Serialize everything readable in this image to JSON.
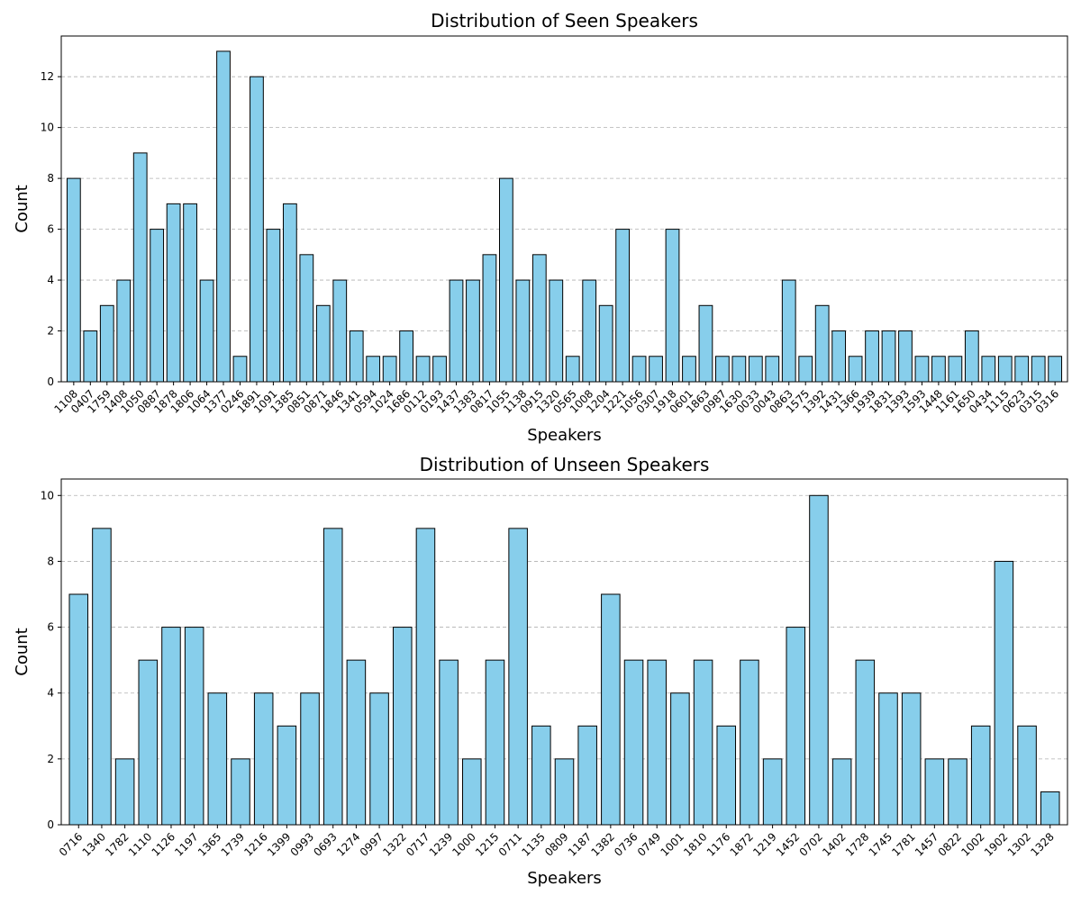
{
  "chart_data": [
    {
      "type": "bar",
      "title": "Distribution of Seen Speakers",
      "xlabel": "Speakers",
      "ylabel": "Count",
      "ylim": [
        0,
        13.6
      ],
      "yticks": [
        0,
        2,
        4,
        6,
        8,
        10,
        12
      ],
      "grid": "y-dashed",
      "bar_color": "#87ceeb",
      "categories": [
        "1108",
        "0407",
        "1759",
        "1408",
        "1050",
        "0887",
        "1878",
        "1806",
        "1064",
        "1377",
        "0246",
        "1891",
        "1091",
        "1385",
        "0851",
        "0871",
        "1846",
        "1341",
        "0594",
        "1024",
        "1686",
        "0112",
        "0193",
        "1437",
        "1383",
        "0817",
        "1055",
        "1138",
        "0915",
        "1320",
        "0565",
        "1008",
        "1204",
        "1221",
        "1056",
        "0307",
        "1918",
        "0601",
        "1863",
        "0987",
        "1630",
        "0033",
        "0043",
        "0863",
        "1575",
        "1392",
        "1431",
        "1366",
        "1939",
        "1831",
        "1393",
        "1593",
        "1448",
        "1161",
        "1650",
        "0434",
        "1115",
        "0623",
        "0315",
        "0316"
      ],
      "values": [
        8,
        2,
        3,
        4,
        9,
        6,
        7,
        7,
        4,
        13,
        1,
        12,
        6,
        7,
        5,
        3,
        4,
        2,
        1,
        1,
        2,
        1,
        1,
        4,
        4,
        5,
        8,
        4,
        5,
        4,
        1,
        4,
        3,
        6,
        1,
        1,
        6,
        1,
        3,
        1,
        1,
        1,
        1,
        4,
        1,
        3,
        2,
        1,
        2,
        2,
        2,
        1,
        1,
        1,
        2,
        1,
        1,
        1,
        1,
        1
      ]
    },
    {
      "type": "bar",
      "title": "Distribution of Unseen Speakers",
      "xlabel": "Speakers",
      "ylabel": "Count",
      "ylim": [
        0,
        10.5
      ],
      "yticks": [
        0,
        2,
        4,
        6,
        8,
        10
      ],
      "grid": "y-dashed",
      "bar_color": "#87ceeb",
      "categories": [
        "0716",
        "1340",
        "1782",
        "1110",
        "1126",
        "1197",
        "1365",
        "1739",
        "1216",
        "1399",
        "0993",
        "0693",
        "1274",
        "0997",
        "1322",
        "0717",
        "1239",
        "1000",
        "1215",
        "0711",
        "1135",
        "0809",
        "1187",
        "1382",
        "0736",
        "0749",
        "1001",
        "1810",
        "1176",
        "1872",
        "1219",
        "1452",
        "0702",
        "1402",
        "1728",
        "1745",
        "1781",
        "1457",
        "0822",
        "1002",
        "1902",
        "1302",
        "1328"
      ],
      "values": [
        7,
        9,
        2,
        5,
        6,
        6,
        4,
        2,
        4,
        3,
        4,
        9,
        5,
        4,
        6,
        9,
        5,
        2,
        5,
        9,
        3,
        2,
        3,
        7,
        5,
        5,
        4,
        5,
        3,
        5,
        2,
        6,
        10,
        2,
        5,
        4,
        4,
        2,
        2,
        3,
        8,
        3,
        1
      ]
    }
  ]
}
